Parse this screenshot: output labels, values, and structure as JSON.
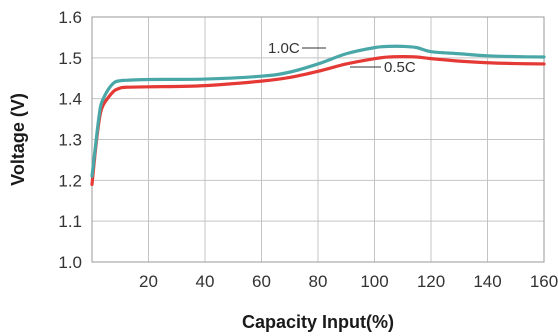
{
  "chart_data": {
    "type": "line",
    "title": "",
    "xlabel": "Capacity Input(%)",
    "ylabel": "Voltage (V)",
    "xlim": [
      0,
      160
    ],
    "ylim": [
      1.0,
      1.6
    ],
    "x_ticks": [
      20,
      40,
      60,
      80,
      100,
      120,
      140,
      160
    ],
    "y_ticks": [
      1.0,
      1.1,
      1.2,
      1.3,
      1.4,
      1.5,
      1.6
    ],
    "x_tick_labels": [
      "20",
      "40",
      "60",
      "80",
      "100",
      "120",
      "140",
      "160"
    ],
    "y_tick_labels": [
      "1.0",
      "1.1",
      "1.2",
      "1.3",
      "1.4",
      "1.5",
      "1.6"
    ],
    "grid": true,
    "series": [
      {
        "name": "1.0C",
        "color": "#4aa7a7",
        "x": [
          0,
          1,
          2,
          3,
          4,
          6,
          8,
          10,
          12,
          20,
          40,
          60,
          70,
          80,
          90,
          100,
          105,
          110,
          115,
          120,
          130,
          140,
          150,
          160
        ],
        "y": [
          1.21,
          1.27,
          1.33,
          1.38,
          1.4,
          1.425,
          1.44,
          1.444,
          1.445,
          1.447,
          1.448,
          1.455,
          1.465,
          1.485,
          1.51,
          1.525,
          1.528,
          1.528,
          1.525,
          1.515,
          1.51,
          1.505,
          1.503,
          1.502
        ]
      },
      {
        "name": "0.5C",
        "color": "#e53935",
        "x": [
          0,
          1,
          2,
          3,
          4,
          6,
          8,
          10,
          12,
          20,
          40,
          60,
          70,
          80,
          90,
          100,
          105,
          110,
          115,
          120,
          130,
          140,
          150,
          160
        ],
        "y": [
          1.19,
          1.26,
          1.32,
          1.365,
          1.385,
          1.405,
          1.42,
          1.426,
          1.428,
          1.429,
          1.432,
          1.443,
          1.452,
          1.467,
          1.485,
          1.498,
          1.502,
          1.503,
          1.502,
          1.498,
          1.492,
          1.488,
          1.486,
          1.485
        ]
      }
    ],
    "annotations": [
      {
        "text": "1.0C",
        "series": "1.0C"
      },
      {
        "text": "0.5C",
        "series": "0.5C"
      }
    ]
  }
}
